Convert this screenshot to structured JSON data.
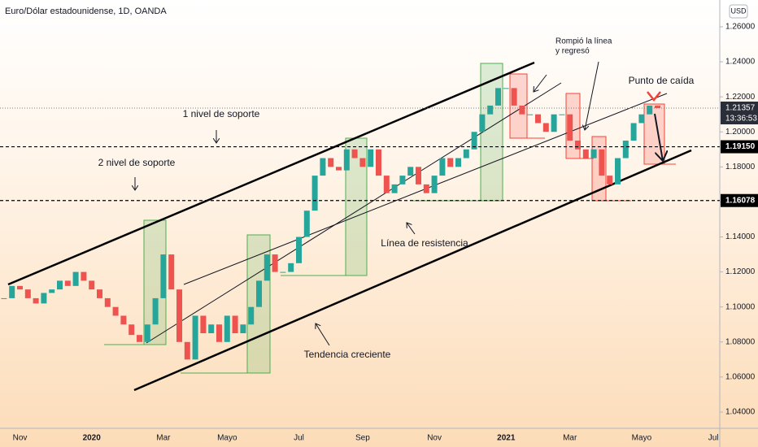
{
  "chart_data": {
    "type": "candlestick",
    "title": "Euro/Dólar estadounidense, 1D, OANDA",
    "currency": "USD",
    "up_color": "#26a69a",
    "down_color": "#ef5350",
    "categories": [
      null,
      null,
      "Nov",
      null,
      null,
      null,
      null,
      null,
      null,
      null,
      null,
      "2020",
      null,
      null,
      null,
      null,
      null,
      null,
      null,
      null,
      "Mar",
      null,
      null,
      null,
      null,
      null,
      null,
      null,
      "Mayo",
      null,
      null,
      null,
      null,
      null,
      null,
      null,
      null,
      "Jul",
      null,
      null,
      null,
      null,
      null,
      null,
      null,
      "Sep",
      null,
      null,
      null,
      null,
      null,
      null,
      null,
      null,
      "Nov",
      null,
      null,
      null,
      null,
      null,
      null,
      null,
      null,
      "2021",
      null,
      null,
      null,
      null,
      null,
      null,
      null,
      "Mar",
      null,
      null,
      null,
      null,
      null,
      null,
      null,
      null,
      "Mayo",
      null,
      null,
      null,
      null,
      null,
      null,
      null,
      null,
      "Jul"
    ],
    "values": [
      1.105,
      1.112,
      1.11,
      1.105,
      1.102,
      1.108,
      1.11,
      1.115,
      1.112,
      1.12,
      1.115,
      1.11,
      1.105,
      1.1,
      1.095,
      1.09,
      1.084,
      1.08,
      1.09,
      1.105,
      1.13,
      1.11,
      1.08,
      1.07,
      1.095,
      1.085,
      1.09,
      1.08,
      1.095,
      1.085,
      1.09,
      1.1,
      1.115,
      1.13,
      1.12,
      1.12,
      1.125,
      1.14,
      1.155,
      1.175,
      1.185,
      1.18,
      1.178,
      1.19,
      1.185,
      1.18,
      1.19,
      1.175,
      1.165,
      1.17,
      1.175,
      1.18,
      1.17,
      1.165,
      1.175,
      1.185,
      1.18,
      1.185,
      1.19,
      1.2,
      1.21,
      1.215,
      1.225,
      1.225,
      1.215,
      1.21,
      1.21,
      1.205,
      1.2,
      1.21,
      1.21,
      1.195,
      1.19,
      1.185,
      1.19,
      1.175,
      1.17,
      1.185,
      1.195,
      1.205,
      1.21,
      1.215,
      1.21357,
      null,
      null,
      null,
      null,
      null,
      null,
      null
    ],
    "ylim": [
      1.0307,
      1.2753
    ],
    "yticks": [
      {
        "value": 1.04,
        "label": "1.04000"
      },
      {
        "value": 1.06,
        "label": "1.06000"
      },
      {
        "value": 1.08,
        "label": "1.08000"
      },
      {
        "value": 1.1,
        "label": "1.10000"
      },
      {
        "value": 1.12,
        "label": "1.12000"
      },
      {
        "value": 1.14,
        "label": "1.14000"
      },
      {
        "value": 1.16,
        "label": "1.16000"
      },
      {
        "value": 1.18,
        "label": "1.18000"
      },
      {
        "value": 1.2,
        "label": "1.20000"
      },
      {
        "value": 1.22,
        "label": "1.22000"
      },
      {
        "value": 1.24,
        "label": "1.24000"
      },
      {
        "value": 1.26,
        "label": "1.26000"
      }
    ],
    "levels": [
      {
        "value": 1.1915,
        "label": "1.19150"
      },
      {
        "value": 1.16078,
        "label": "1.16078"
      }
    ],
    "last_price": {
      "value": 1.21357,
      "label": "1.21357",
      "countdown": "13:36:53"
    },
    "annotations": [
      "1 nivel de soporte",
      "2 nivel de soporte",
      "Línea de resistencia",
      "Tendencia creciente",
      "Rompió la línea",
      "y regresó",
      "Punto de caída"
    ]
  }
}
